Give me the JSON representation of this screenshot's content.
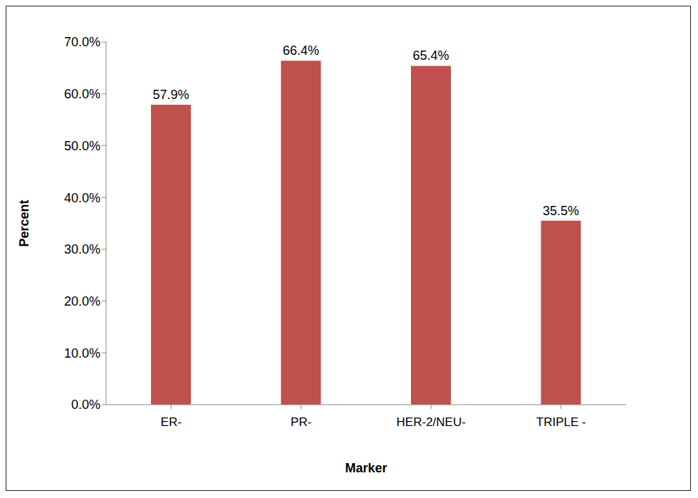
{
  "chart_data": {
    "type": "bar",
    "x_label": "Marker",
    "y_label": "Percent",
    "categories": [
      "ER-",
      "PR-",
      "HER-2/NEU-",
      "TRIPLE -"
    ],
    "values": [
      57.9,
      66.4,
      65.4,
      35.5
    ],
    "value_labels": [
      "57.9%",
      "66.4%",
      "65.4%",
      "35.5%"
    ],
    "color": "#c0504d",
    "ylim": [
      0,
      70
    ],
    "yticks": [
      {
        "value": 0,
        "label": "0.0%"
      },
      {
        "value": 10,
        "label": "10.0%"
      },
      {
        "value": 20,
        "label": "20.0%"
      },
      {
        "value": 30,
        "label": "30.0%"
      },
      {
        "value": 40,
        "label": "40.0%"
      },
      {
        "value": 50,
        "label": "50.0%"
      },
      {
        "value": 60,
        "label": "60.0%"
      },
      {
        "value": 70,
        "label": "70.0%"
      }
    ],
    "grid": false,
    "data_labels": true
  }
}
